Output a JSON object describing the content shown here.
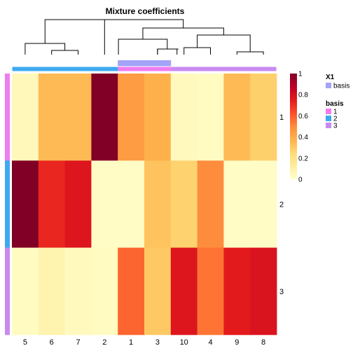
{
  "chart_data": {
    "type": "heatmap",
    "title": "Mixture coefficients",
    "columns": [
      "5",
      "6",
      "7",
      "2",
      "1",
      "3",
      "10",
      "4",
      "9",
      "8"
    ],
    "rows": [
      "1",
      "2",
      "3"
    ],
    "values": [
      [
        0.05,
        0.35,
        0.35,
        1.0,
        0.45,
        0.38,
        0.04,
        0.03,
        0.35,
        0.28
      ],
      [
        1.0,
        0.72,
        0.77,
        0.02,
        0.02,
        0.32,
        0.27,
        0.5,
        0.02,
        0.02
      ],
      [
        0.03,
        0.08,
        0.04,
        0.03,
        0.58,
        0.3,
        0.77,
        0.55,
        0.75,
        0.78
      ]
    ],
    "column_basis": [
      "2",
      "2",
      "2",
      "2",
      "1",
      "1",
      "3",
      "3",
      "3",
      "3"
    ],
    "row_basis": [
      "1",
      "2",
      "3"
    ],
    "column_x1_marked": [
      false,
      false,
      false,
      false,
      true,
      true,
      false,
      false,
      false,
      false
    ],
    "color_scale": {
      "ticks": [
        0,
        0.2,
        0.4,
        0.6,
        0.8,
        1
      ],
      "tick_labels": [
        "0",
        "0.2",
        "0.4",
        "0.6",
        "0.8",
        "1"
      ],
      "stops": [
        "#FFFFCC",
        "#FFEDA0",
        "#FED976",
        "#FEB24C",
        "#FD8D3C",
        "#FC4E2A",
        "#E31A1C",
        "#BD0026",
        "#800026"
      ]
    },
    "legend": {
      "x1_title": "X1",
      "x1_items": [
        {
          "label": "basis",
          "color": "#A3A3F7"
        }
      ],
      "basis_title": "basis",
      "basis_items": [
        {
          "label": "1",
          "color": "#F07CF0"
        },
        {
          "label": "2",
          "color": "#3FA9F0"
        },
        {
          "label": "3",
          "color": "#C88AF0"
        }
      ]
    }
  }
}
